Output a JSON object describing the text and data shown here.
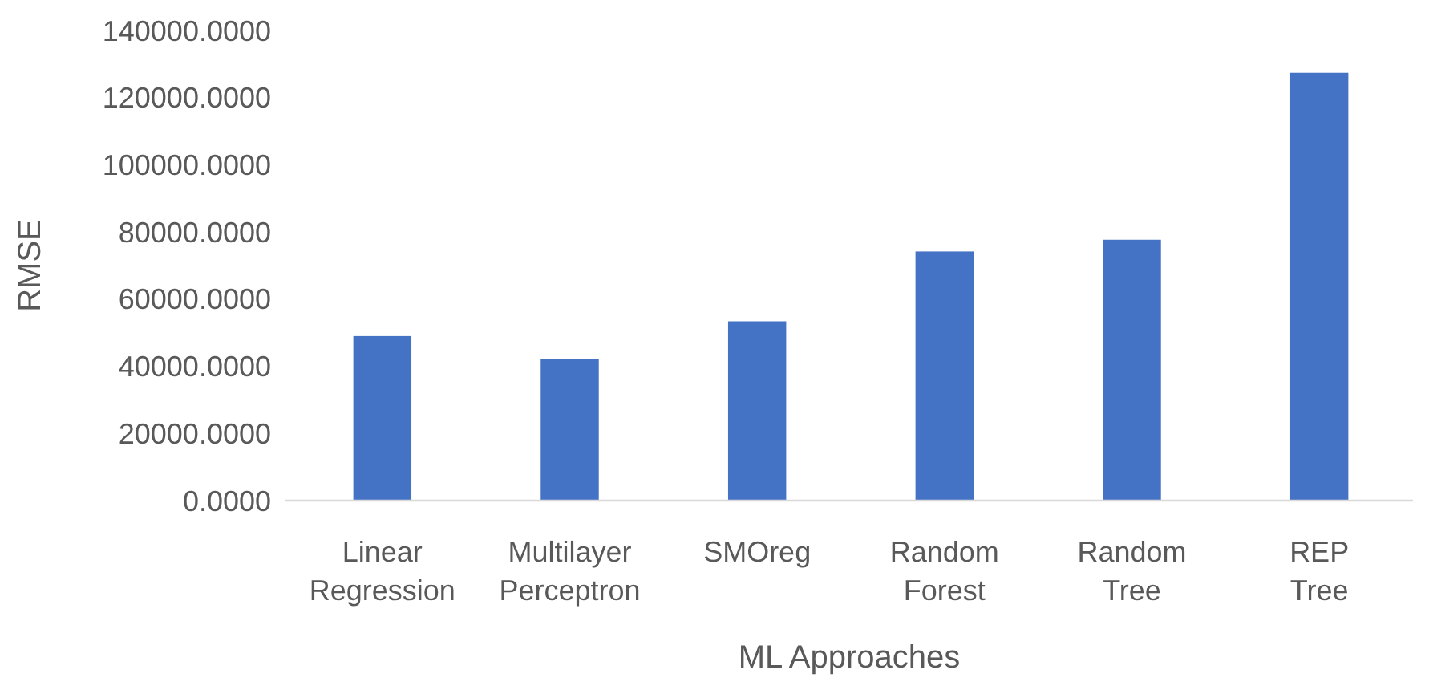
{
  "chart_data": {
    "type": "bar",
    "xlabel": "ML Approaches",
    "ylabel": "RMSE",
    "categories": [
      "Linear Regression",
      "Multilayer Perceptron",
      "SMOreg",
      "Random Forest",
      "Random Tree",
      "REP Tree"
    ],
    "values": [
      49000,
      42200,
      53400,
      74200,
      77700,
      127400
    ],
    "color": "#4472c4",
    "ylim": [
      0,
      140000
    ],
    "yticks": [
      {
        "value": 0,
        "label": "0.0000"
      },
      {
        "value": 20000,
        "label": "20000.0000"
      },
      {
        "value": 40000,
        "label": "40000.0000"
      },
      {
        "value": 60000,
        "label": "60000.0000"
      },
      {
        "value": 80000,
        "label": "80000.0000"
      },
      {
        "value": 100000,
        "label": "100000.0000"
      },
      {
        "value": 120000,
        "label": "120000.0000"
      },
      {
        "value": 140000,
        "label": "140000.0000"
      }
    ],
    "grid": false
  }
}
